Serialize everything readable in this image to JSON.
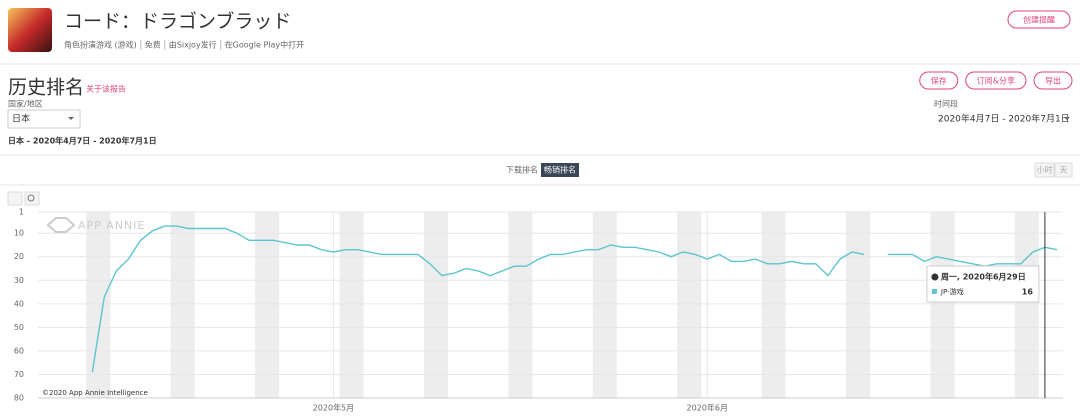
{
  "header": {
    "title": "コード：ドラゴンブラッド",
    "meta": [
      "角色扮演游戏 (游戏)",
      "免费",
      "由Sixjoy发行",
      "在Google Play中打开"
    ],
    "alert_button": "创建提醒"
  },
  "report": {
    "title": "历史排名",
    "about": "关于该报告",
    "actions": [
      "保存",
      "订阅&分享",
      "导出"
    ]
  },
  "filters": {
    "country_label": "国家/地区",
    "country": "日本",
    "period_label": "时间段",
    "period": "2020年4月7日 - 2020年7月1日",
    "summary": "日本 - 2020年4月7日 - 2020年7月1日"
  },
  "tabs": {
    "items": [
      "下载排名",
      "畅销排名"
    ],
    "granularity": [
      "小时",
      "天"
    ]
  },
  "chart_data": {
    "type": "line",
    "watermark": "APP ANNIE",
    "copyright": "©2020 App Annie Intelligence",
    "x": [
      "2020-04-07",
      "2020-04-08",
      "2020-04-09",
      "2020-04-10",
      "2020-04-11",
      "2020-04-12",
      "2020-04-13",
      "2020-04-14",
      "2020-04-15",
      "2020-04-16",
      "2020-04-17",
      "2020-04-18",
      "2020-04-19",
      "2020-04-20",
      "2020-04-21",
      "2020-04-22",
      "2020-04-23",
      "2020-04-24",
      "2020-04-25",
      "2020-04-26",
      "2020-04-27",
      "2020-04-28",
      "2020-04-29",
      "2020-04-30",
      "2020-05-01",
      "2020-05-02",
      "2020-05-03",
      "2020-05-04",
      "2020-05-05",
      "2020-05-06",
      "2020-05-07",
      "2020-05-08",
      "2020-05-09",
      "2020-05-10",
      "2020-05-11",
      "2020-05-12",
      "2020-05-13",
      "2020-05-14",
      "2020-05-15",
      "2020-05-16",
      "2020-05-17",
      "2020-05-18",
      "2020-05-19",
      "2020-05-20",
      "2020-05-21",
      "2020-05-22",
      "2020-05-23",
      "2020-05-24",
      "2020-05-25",
      "2020-05-26",
      "2020-05-27",
      "2020-05-28",
      "2020-05-29",
      "2020-05-30",
      "2020-05-31",
      "2020-06-01",
      "2020-06-02",
      "2020-06-03",
      "2020-06-04",
      "2020-06-05",
      "2020-06-06",
      "2020-06-07",
      "2020-06-08",
      "2020-06-09",
      "2020-06-10",
      "2020-06-11",
      "2020-06-12",
      "2020-06-13",
      "2020-06-14",
      "2020-06-15",
      "2020-06-16",
      "2020-06-17",
      "2020-06-18",
      "2020-06-19",
      "2020-06-20",
      "2020-06-21",
      "2020-06-22",
      "2020-06-23",
      "2020-06-24",
      "2020-06-25",
      "2020-06-26",
      "2020-06-27",
      "2020-06-28",
      "2020-06-29",
      "2020-06-30"
    ],
    "series": [
      {
        "name": "JP-游戏",
        "color": "#5bc5d0",
        "values": [
          null,
          null,
          null,
          null,
          69,
          37,
          26,
          21,
          13,
          9,
          7,
          7,
          8,
          8,
          8,
          8,
          10,
          13,
          13,
          13,
          14,
          15,
          15,
          17,
          18,
          17,
          17,
          18,
          19,
          19,
          19,
          19,
          23,
          28,
          27,
          25,
          26,
          28,
          26,
          24,
          24,
          21,
          19,
          19,
          18,
          17,
          17,
          15,
          16,
          16,
          17,
          18,
          20,
          18,
          19,
          21,
          19,
          22,
          22,
          21,
          23,
          23,
          22,
          23,
          23,
          28,
          21,
          18,
          19,
          null,
          19,
          19,
          19,
          22,
          20,
          21,
          22,
          23,
          24,
          23,
          23,
          23,
          18,
          16,
          17
        ]
      }
    ],
    "xlim": [
      "2020-04-07",
      "2020-07-01"
    ],
    "xticks": [
      {
        "value": "2020-05-01",
        "label": "2020年5月"
      },
      {
        "value": "2020-06-01",
        "label": "2020年6月"
      }
    ],
    "ylim": [
      1,
      80
    ],
    "y_inverted": true,
    "yticks": [
      1,
      10,
      20,
      30,
      40,
      50,
      60,
      70,
      80
    ],
    "grid": true,
    "tooltip": {
      "title": "周一, 2020年6月29日"
    }
  }
}
